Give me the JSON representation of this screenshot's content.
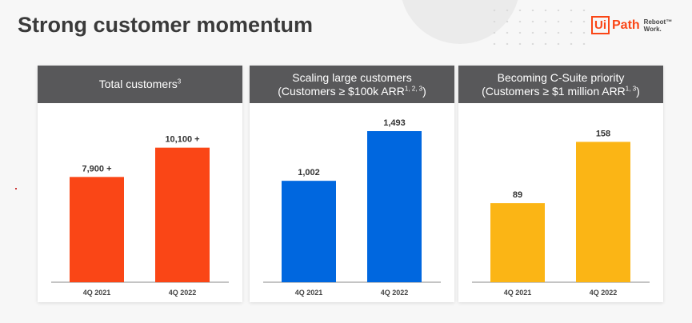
{
  "slide": {
    "title": "Strong customer momentum"
  },
  "logo": {
    "box_text": "Ui",
    "path_text": "Path",
    "tagline_1": "Reboot™",
    "tagline_2": "Work."
  },
  "panels": [
    {
      "title": "Total customers",
      "title_sup": "3",
      "subtitle": "",
      "subtitle_sup": ""
    },
    {
      "title": "Scaling large customers",
      "title_sup": "",
      "subtitle": "(Customers ≥ $100k ARR",
      "subtitle_sup": "1, 2, 3",
      "subtitle_end": ")"
    },
    {
      "title": "Becoming C-Suite priority",
      "title_sup": "",
      "subtitle": "(Customers ≥ $1 million ARR",
      "subtitle_sup": "1, 3",
      "subtitle_end": ")"
    }
  ],
  "chart_data": [
    {
      "type": "bar",
      "title": "Total customers",
      "categories": [
        "4Q 2021",
        "4Q 2022"
      ],
      "values": [
        7900,
        10100
      ],
      "value_labels": [
        "7,900 +",
        "10,100 +"
      ],
      "color": "#fa4616",
      "ylim": [
        0,
        12000
      ],
      "grid": false
    },
    {
      "type": "bar",
      "title": "Scaling large customers",
      "categories": [
        "4Q 2021",
        "4Q 2022"
      ],
      "values": [
        1002,
        1493
      ],
      "value_labels": [
        "1,002",
        "1,493"
      ],
      "color": "#0067df",
      "ylim": [
        0,
        1580
      ],
      "grid": false
    },
    {
      "type": "bar",
      "title": "Becoming C-Suite priority",
      "categories": [
        "4Q 2021",
        "4Q 2022"
      ],
      "values": [
        89,
        158
      ],
      "value_labels": [
        "89",
        "158"
      ],
      "color": "#fbb515",
      "ylim": [
        0,
        180
      ],
      "grid": false
    }
  ]
}
